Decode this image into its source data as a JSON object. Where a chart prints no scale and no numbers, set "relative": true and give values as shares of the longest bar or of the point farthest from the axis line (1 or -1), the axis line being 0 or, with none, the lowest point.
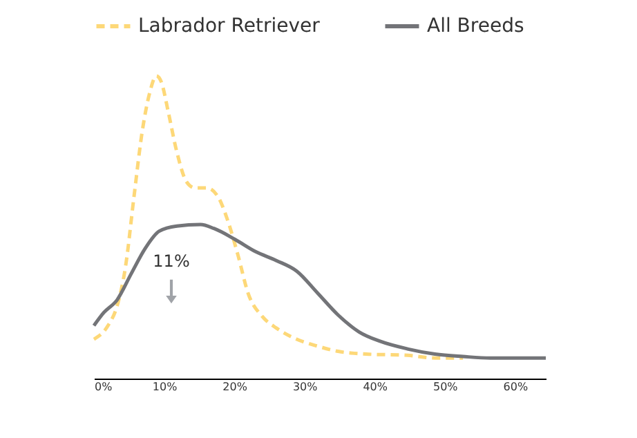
{
  "chart_data": {
    "type": "line",
    "relative": true,
    "legend": "top",
    "grid": false,
    "xlim": [
      0,
      64.4
    ],
    "xticks": [
      {
        "value": 0,
        "label": "0%"
      },
      {
        "value": 10,
        "label": "10%"
      },
      {
        "value": 20,
        "label": "20%"
      },
      {
        "value": 30,
        "label": "30%"
      },
      {
        "value": 40,
        "label": "40%"
      },
      {
        "value": 50,
        "label": "50%"
      },
      {
        "value": 60,
        "label": "60%"
      }
    ],
    "annotations": [
      "11%"
    ],
    "series": [
      {
        "name": "Labrador Retriever",
        "color": "#fdd878",
        "line_style": "dashed",
        "x": [
          0,
          2,
          3.3,
          4.5,
          5.7,
          6.9,
          7.9,
          8.9,
          9.6,
          10.6,
          11.8,
          13.2,
          14.4,
          16.1,
          17.7,
          19.1,
          20.5,
          22,
          24,
          26,
          28.9,
          31.9,
          34.8,
          38.8,
          44.7,
          48.6,
          52.6
        ],
        "values": [
          0.13,
          0.175,
          0.24,
          0.37,
          0.6,
          0.82,
          0.94,
          1.0,
          0.98,
          0.88,
          0.75,
          0.65,
          0.63,
          0.63,
          0.6,
          0.52,
          0.41,
          0.28,
          0.205,
          0.167,
          0.13,
          0.107,
          0.09,
          0.081,
          0.077,
          0.068,
          0.068
        ]
      },
      {
        "name": "All Breeds",
        "color": "#737478",
        "line_style": "solid",
        "x": [
          0,
          1.4,
          3.3,
          5.3,
          7.3,
          9.3,
          11.8,
          15.2,
          17.1,
          20.1,
          23,
          26,
          28.9,
          31.9,
          34.8,
          37.8,
          40.7,
          44.7,
          48.6,
          52.6,
          56.5,
          60.4,
          64.4
        ],
        "values": [
          0.175,
          0.218,
          0.26,
          0.346,
          0.43,
          0.487,
          0.504,
          0.509,
          0.496,
          0.46,
          0.42,
          0.39,
          0.355,
          0.282,
          0.21,
          0.154,
          0.124,
          0.098,
          0.081,
          0.073,
          0.068,
          0.068,
          0.068
        ]
      }
    ]
  }
}
